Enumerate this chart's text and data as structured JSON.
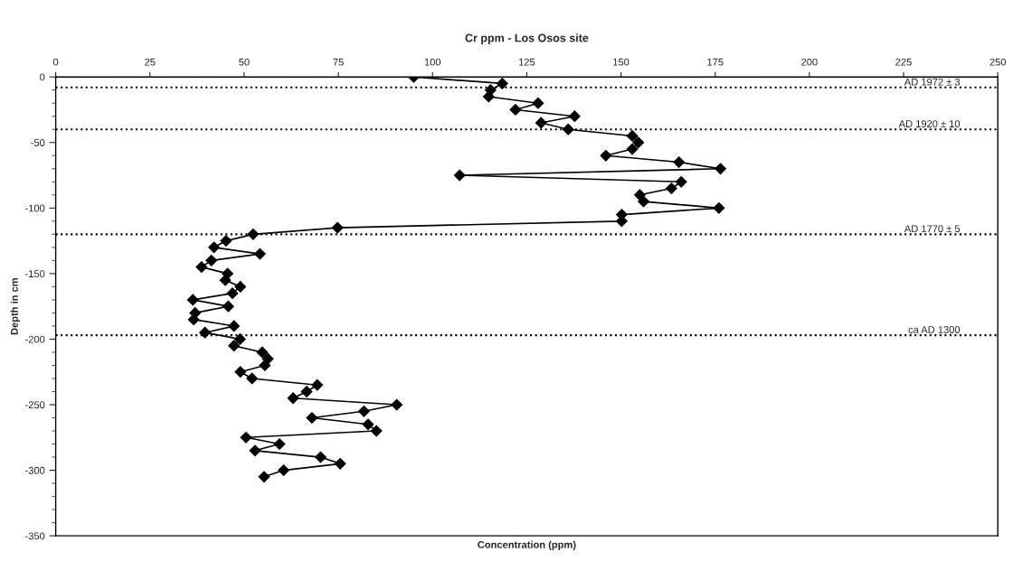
{
  "chart_data": {
    "type": "line",
    "title": "Cr ppm - Los Osos site",
    "xlabel": "Concentration (ppm)",
    "ylabel": "Depth in cm",
    "xlim": [
      0,
      250
    ],
    "xticks": [
      0,
      25,
      50,
      75,
      100,
      125,
      150,
      175,
      200,
      225,
      250
    ],
    "ylim": [
      -350,
      0
    ],
    "yticks": [
      -350,
      -300,
      -250,
      -200,
      -150,
      -100,
      -50,
      0
    ],
    "grid": false,
    "legend": false,
    "marker": "diamond",
    "line_style": "solid",
    "series": [
      {
        "color": "#000000",
        "x": [
          95,
          118.5,
          115.4,
          114.9,
          128,
          122,
          137.7,
          128.8,
          136,
          153,
          154.6,
          153,
          146,
          165.4,
          176.4,
          107.2,
          166,
          163.4,
          155,
          156,
          176,
          150.2,
          150.2,
          74.8,
          52.4,
          45.2,
          42,
          54.2,
          41.3,
          38.7,
          45.6,
          45,
          49,
          46.9,
          36.4,
          45.8,
          37,
          36.6,
          47.3,
          39.6,
          48.9,
          47.3,
          54.8,
          56.3,
          55.5,
          49,
          52.1,
          69.4,
          66.6,
          63,
          90.5,
          81.8,
          68,
          82.9,
          85.1,
          50.5,
          59.4,
          52.9,
          70.3,
          75.5,
          60.5,
          55.3
        ],
        "values": [
          0,
          -5,
          -10,
          -15,
          -20,
          -25,
          -30,
          -35,
          -40,
          -45,
          -50,
          -55,
          -60,
          -65,
          -70,
          -75,
          -80,
          -85,
          -90,
          -95,
          -100,
          -105,
          -110,
          -115,
          -120,
          -125,
          -130,
          -135,
          -140,
          -145,
          -150,
          -155,
          -160,
          -165,
          -170,
          -175,
          -180,
          -185,
          -190,
          -195,
          -200,
          -205,
          -210,
          -215,
          -220,
          -225,
          -230,
          -235,
          -240,
          -245,
          -250,
          -255,
          -260,
          -265,
          -270,
          -275,
          -280,
          -285,
          -290,
          -295,
          -300,
          -305
        ]
      }
    ],
    "ref_lines": [
      {
        "axis": "y",
        "value": -8,
        "label": "AD 1972 ± 3",
        "color": "#000000",
        "line_style": "dotted"
      },
      {
        "axis": "y",
        "value": -40,
        "label": "AD 1920 ± 10",
        "color": "#000000",
        "line_style": "dotted"
      },
      {
        "axis": "y",
        "value": -120,
        "label": "AD 1770 ± 5",
        "color": "#000000",
        "line_style": "dotted"
      },
      {
        "axis": "y",
        "value": -197,
        "label": "ca AD 1300",
        "color": "#000000",
        "line_style": "dotted"
      }
    ]
  }
}
